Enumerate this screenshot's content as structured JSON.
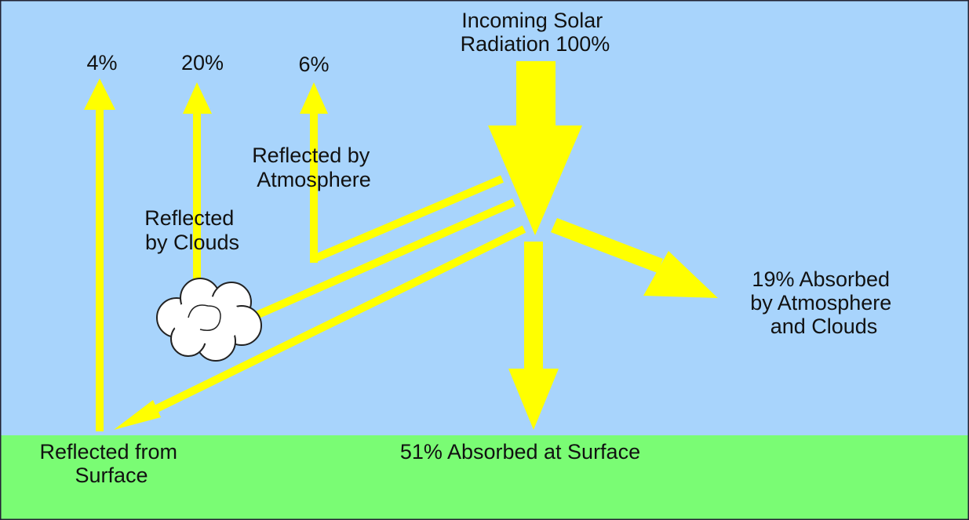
{
  "incoming": {
    "lines": [
      "Incoming Solar",
      "Radiation 100%"
    ]
  },
  "outgoing": {
    "surface_percent": "4%",
    "clouds_percent": "20%",
    "atmosphere_percent": "6%"
  },
  "reflected_atmosphere": {
    "lines": [
      "Reflected by",
      "Atmosphere"
    ]
  },
  "reflected_clouds": {
    "lines": [
      "Reflected",
      "by Clouds"
    ]
  },
  "absorbed_atmosphere": {
    "lines": [
      "19% Absorbed",
      "by Atmosphere",
      "and Clouds"
    ]
  },
  "reflected_surface": {
    "lines": [
      "Reflected from",
      "Surface"
    ]
  },
  "absorbed_surface": {
    "label": "51% Absorbed at Surface"
  }
}
